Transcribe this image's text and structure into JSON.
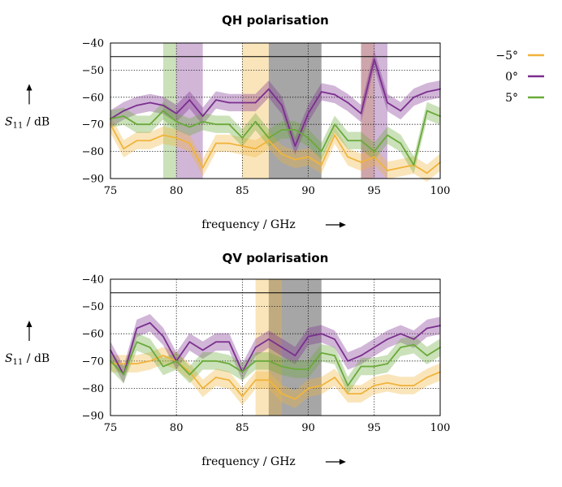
{
  "chart_data": [
    {
      "type": "line",
      "title": "QH polarisation",
      "xlabel": "frequency / GHz",
      "ylabel": "S11 / dB",
      "ylabel_main": "S",
      "ylabel_sub": "11",
      "ylabel_unit": " / dB",
      "xlim": [
        75,
        100
      ],
      "ylim": [
        -90,
        -40
      ],
      "xticks": [
        75,
        80,
        85,
        90,
        95,
        100
      ],
      "yticks": [
        -40,
        -50,
        -60,
        -70,
        -80,
        -90
      ],
      "grid": true,
      "reference_line": -45,
      "highlight_band": [
        87,
        91
      ],
      "x": [
        75,
        76,
        77,
        78,
        79,
        80,
        81,
        82,
        83,
        84,
        85,
        86,
        87,
        88,
        89,
        90,
        91,
        92,
        93,
        94,
        95,
        96,
        97,
        98,
        99,
        100
      ],
      "series": [
        {
          "name": "−5°",
          "color": "#f0b43c",
          "values": [
            -70,
            -79,
            -76,
            -76,
            -74,
            -75,
            -77,
            -86,
            -77,
            -77,
            -78,
            -79,
            -76,
            -81,
            -83,
            -82,
            -85,
            -74,
            -82,
            -84,
            -82,
            -87,
            -86,
            -85,
            -88,
            -84
          ],
          "shaded_ranges": [
            [
              85,
              87
            ],
            [
              94,
              95
            ]
          ]
        },
        {
          "name": "0°",
          "color": "#7b2f8e",
          "values": [
            -68,
            -65,
            -63,
            -62,
            -63,
            -66,
            -61,
            -67,
            -61,
            -62,
            -62,
            -62,
            -57,
            -63,
            -78,
            -66,
            -58,
            -59,
            -62,
            -66,
            -46,
            -62,
            -65,
            -60,
            -58,
            -57
          ],
          "shaded_ranges": [
            [
              80,
              82
            ],
            [
              94,
              96
            ]
          ]
        },
        {
          "name": "5°",
          "color": "#6aaa3a",
          "values": [
            -68,
            -67,
            -70,
            -70,
            -65,
            -69,
            -71,
            -69,
            -70,
            -70,
            -75,
            -69,
            -75,
            -72,
            -72,
            -75,
            -80,
            -70,
            -76,
            -76,
            -80,
            -74,
            -77,
            -85,
            -65,
            -67
          ],
          "shaded_ranges": [
            [
              79,
              80
            ]
          ]
        }
      ]
    },
    {
      "type": "line",
      "title": "QV polarisation",
      "xlabel": "frequency / GHz",
      "ylabel": "S11 / dB",
      "ylabel_main": "S",
      "ylabel_sub": "11",
      "ylabel_unit": " / dB",
      "xlim": [
        75,
        100
      ],
      "ylim": [
        -90,
        -40
      ],
      "xticks": [
        75,
        80,
        85,
        90,
        95,
        100
      ],
      "yticks": [
        -40,
        -50,
        -60,
        -70,
        -80,
        -90
      ],
      "grid": true,
      "reference_line": -45,
      "highlight_band": [
        87,
        91
      ],
      "x": [
        75,
        76,
        77,
        78,
        79,
        80,
        81,
        82,
        83,
        84,
        85,
        86,
        87,
        88,
        89,
        90,
        91,
        92,
        93,
        94,
        95,
        96,
        97,
        98,
        99,
        100
      ],
      "series": [
        {
          "name": "−5°",
          "color": "#f0b43c",
          "values": [
            -71,
            -71,
            -71,
            -70,
            -68,
            -70,
            -74,
            -80,
            -76,
            -77,
            -83,
            -77,
            -77,
            -82,
            -84,
            -80,
            -79,
            -76,
            -82,
            -82,
            -79,
            -78,
            -79,
            -79,
            -76,
            -74
          ],
          "shaded_ranges": [
            [
              86,
              88
            ]
          ]
        },
        {
          "name": "0°",
          "color": "#7b2f8e",
          "values": [
            -66,
            -75,
            -58,
            -56,
            -61,
            -70,
            -63,
            -66,
            -63,
            -63,
            -74,
            -65,
            -62,
            -65,
            -68,
            -61,
            -60,
            -62,
            -70,
            -68,
            -65,
            -62,
            -60,
            -62,
            -58,
            -57
          ],
          "shaded_ranges": []
        },
        {
          "name": "5°",
          "color": "#6aaa3a",
          "values": [
            -70,
            -75,
            -63,
            -65,
            -72,
            -70,
            -75,
            -70,
            -70,
            -71,
            -74,
            -70,
            -70,
            -72,
            -73,
            -73,
            -67,
            -68,
            -79,
            -72,
            -72,
            -71,
            -65,
            -64,
            -68,
            -65
          ],
          "shaded_ranges": []
        }
      ]
    }
  ],
  "legend": {
    "placement": "top-right",
    "entries": [
      {
        "label": "−5°",
        "color": "#f0b43c"
      },
      {
        "label": "0°",
        "color": "#7b2f8e"
      },
      {
        "label": "5°",
        "color": "#6aaa3a"
      }
    ]
  }
}
